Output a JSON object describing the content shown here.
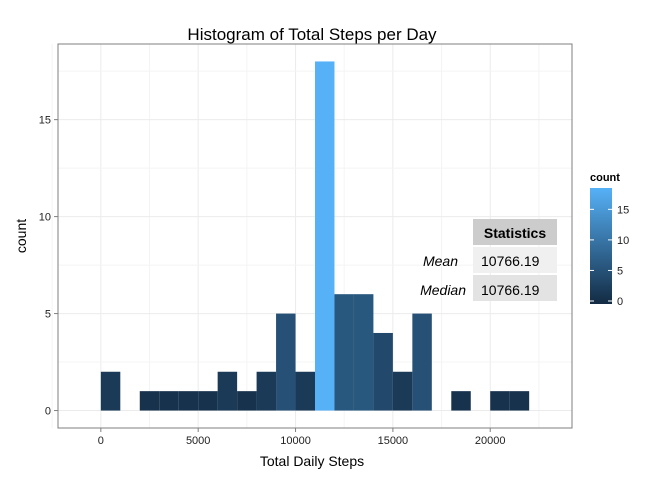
{
  "chart_data": {
    "type": "bar",
    "title": "Histogram of Total Steps per Day",
    "xlabel": "Total Daily Steps",
    "ylabel": "count",
    "xlim": [
      -2200,
      24200
    ],
    "ylim": [
      -0.9,
      18.9
    ],
    "xticks": [
      0,
      5000,
      10000,
      15000,
      20000
    ],
    "yticks": [
      0,
      5,
      10,
      15
    ],
    "bin_width": 1000,
    "grid": true,
    "bins": [
      {
        "x0": 0,
        "x1": 1000,
        "count": 2
      },
      {
        "x0": 1000,
        "x1": 2000,
        "count": 0
      },
      {
        "x0": 2000,
        "x1": 3000,
        "count": 1
      },
      {
        "x0": 3000,
        "x1": 4000,
        "count": 1
      },
      {
        "x0": 4000,
        "x1": 5000,
        "count": 1
      },
      {
        "x0": 5000,
        "x1": 6000,
        "count": 1
      },
      {
        "x0": 6000,
        "x1": 7000,
        "count": 2
      },
      {
        "x0": 7000,
        "x1": 8000,
        "count": 1
      },
      {
        "x0": 8000,
        "x1": 9000,
        "count": 2
      },
      {
        "x0": 9000,
        "x1": 10000,
        "count": 5
      },
      {
        "x0": 10000,
        "x1": 11000,
        "count": 2
      },
      {
        "x0": 11000,
        "x1": 12000,
        "count": 18
      },
      {
        "x0": 12000,
        "x1": 13000,
        "count": 6
      },
      {
        "x0": 13000,
        "x1": 14000,
        "count": 6
      },
      {
        "x0": 14000,
        "x1": 15000,
        "count": 4
      },
      {
        "x0": 15000,
        "x1": 16000,
        "count": 2
      },
      {
        "x0": 16000,
        "x1": 17000,
        "count": 5
      },
      {
        "x0": 17000,
        "x1": 18000,
        "count": 0
      },
      {
        "x0": 18000,
        "x1": 19000,
        "count": 1
      },
      {
        "x0": 19000,
        "x1": 20000,
        "count": 0
      },
      {
        "x0": 20000,
        "x1": 21000,
        "count": 1
      },
      {
        "x0": 21000,
        "x1": 22000,
        "count": 1
      }
    ],
    "legend": {
      "title": "count",
      "placement": "right",
      "ticks": [
        0,
        5,
        10,
        15
      ],
      "range": [
        0,
        18
      ],
      "color_low": "#132b43",
      "color_high": "#56b1f7"
    },
    "stats_table": {
      "header": "Statistics",
      "rows": [
        {
          "label": "Mean",
          "value": "10766.19"
        },
        {
          "label": "Median",
          "value": "10766.19"
        }
      ]
    }
  },
  "colors": {
    "panel_border": "#7f7f7f",
    "grid": "#ebebeb",
    "tick": "#7f7f7f"
  }
}
